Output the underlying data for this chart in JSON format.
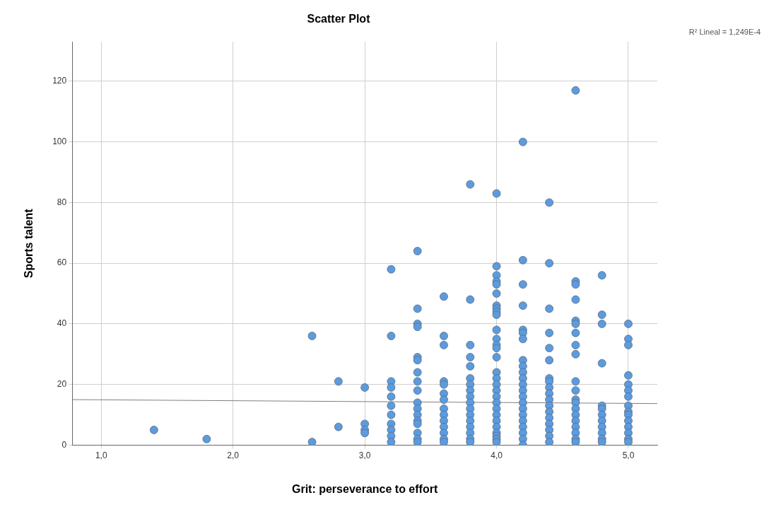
{
  "chart_data": {
    "type": "scatter",
    "title": "Scatter Plot",
    "xlabel": "Grit: perseverance to effort",
    "ylabel": "Sports talent",
    "annotations": [
      "R² Lineal = 1,249E-4"
    ],
    "xlim": [
      0.78,
      5.22
    ],
    "xticks": [
      {
        "value": 1,
        "label": "1,0"
      },
      {
        "value": 2,
        "label": "2,0"
      },
      {
        "value": 3,
        "label": "3,0"
      },
      {
        "value": 4,
        "label": "4,0"
      },
      {
        "value": 5,
        "label": "5,0"
      }
    ],
    "ylim": [
      0,
      133
    ],
    "yticks": [
      0,
      20,
      40,
      60,
      80,
      100,
      120
    ],
    "grid": true,
    "legend": false,
    "series": [
      {
        "marker": "circle",
        "color": "#5b9bdf",
        "x": [
          1.4,
          1.8,
          2.6,
          2.6,
          2.8,
          2.8,
          3.0,
          3.0,
          3.0,
          3.0,
          3.2,
          3.2,
          3.2,
          3.2,
          3.2,
          3.2,
          3.2,
          3.2,
          3.2,
          3.2,
          3.2,
          3.4,
          3.4,
          3.4,
          3.4,
          3.4,
          3.4,
          3.4,
          3.4,
          3.4,
          3.4,
          3.4,
          3.4,
          3.4,
          3.4,
          3.4,
          3.4,
          3.4,
          3.6,
          3.6,
          3.6,
          3.6,
          3.6,
          3.6,
          3.6,
          3.6,
          3.6,
          3.6,
          3.6,
          3.6,
          3.6,
          3.6,
          3.8,
          3.8,
          3.8,
          3.8,
          3.8,
          3.8,
          3.8,
          3.8,
          3.8,
          3.8,
          3.8,
          3.8,
          3.8,
          3.8,
          3.8,
          3.8,
          3.8,
          4.0,
          4.0,
          4.0,
          4.0,
          4.0,
          4.0,
          4.0,
          4.0,
          4.0,
          4.0,
          4.0,
          4.0,
          4.0,
          4.0,
          4.0,
          4.0,
          4.0,
          4.0,
          4.0,
          4.0,
          4.0,
          4.0,
          4.0,
          4.0,
          4.0,
          4.0,
          4.0,
          4.0,
          4.0,
          4.2,
          4.2,
          4.2,
          4.2,
          4.2,
          4.2,
          4.2,
          4.2,
          4.2,
          4.2,
          4.2,
          4.2,
          4.2,
          4.2,
          4.2,
          4.2,
          4.2,
          4.2,
          4.2,
          4.2,
          4.2,
          4.2,
          4.4,
          4.4,
          4.4,
          4.4,
          4.4,
          4.4,
          4.4,
          4.4,
          4.4,
          4.4,
          4.4,
          4.4,
          4.4,
          4.4,
          4.4,
          4.4,
          4.4,
          4.4,
          4.6,
          4.6,
          4.6,
          4.6,
          4.6,
          4.6,
          4.6,
          4.6,
          4.6,
          4.6,
          4.6,
          4.6,
          4.6,
          4.6,
          4.6,
          4.6,
          4.6,
          4.6,
          4.6,
          4.6,
          4.8,
          4.8,
          4.8,
          4.8,
          4.8,
          4.8,
          4.8,
          4.8,
          4.8,
          4.8,
          4.8,
          4.8,
          5.0,
          5.0,
          5.0,
          5.0,
          5.0,
          5.0,
          5.0,
          5.0,
          5.0,
          5.0,
          5.0,
          5.0,
          5.0,
          5.0,
          5.0
        ],
        "values": [
          5,
          2,
          36,
          1,
          21,
          6,
          19,
          7,
          5,
          4,
          58,
          36,
          21,
          19,
          16,
          13,
          10,
          7,
          5,
          3,
          1,
          64,
          45,
          40,
          39,
          29,
          28,
          24,
          21,
          18,
          14,
          12,
          10,
          8,
          7,
          4,
          2,
          1,
          49,
          36,
          33,
          21,
          20,
          17,
          15,
          12,
          10,
          8,
          6,
          4,
          2,
          1,
          86,
          48,
          33,
          29,
          26,
          22,
          20,
          18,
          16,
          14,
          12,
          10,
          8,
          6,
          4,
          2,
          1,
          83,
          59,
          56,
          54,
          53,
          50,
          46,
          45,
          44,
          43,
          38,
          35,
          33,
          32,
          29,
          24,
          22,
          20,
          18,
          16,
          14,
          12,
          10,
          8,
          6,
          4,
          3,
          2,
          1,
          100,
          61,
          53,
          46,
          38,
          37,
          35,
          28,
          26,
          24,
          22,
          20,
          18,
          16,
          14,
          12,
          10,
          8,
          6,
          4,
          2,
          0,
          80,
          60,
          45,
          37,
          32,
          28,
          22,
          21,
          19,
          17,
          15,
          13,
          11,
          9,
          7,
          5,
          3,
          1,
          117,
          54,
          53,
          48,
          41,
          40,
          37,
          33,
          30,
          21,
          18,
          15,
          14,
          12,
          10,
          8,
          6,
          4,
          2,
          1,
          56,
          43,
          40,
          27,
          13,
          12,
          10,
          8,
          6,
          4,
          2,
          1,
          40,
          35,
          33,
          23,
          20,
          18,
          16,
          13,
          11,
          10,
          8,
          6,
          4,
          2,
          1
        ]
      },
      {
        "type": "line",
        "marker": "none",
        "color": "#7f7f7f",
        "x": [
          0.78,
          5.22
        ],
        "values": [
          15.0,
          13.7
        ]
      }
    ]
  }
}
